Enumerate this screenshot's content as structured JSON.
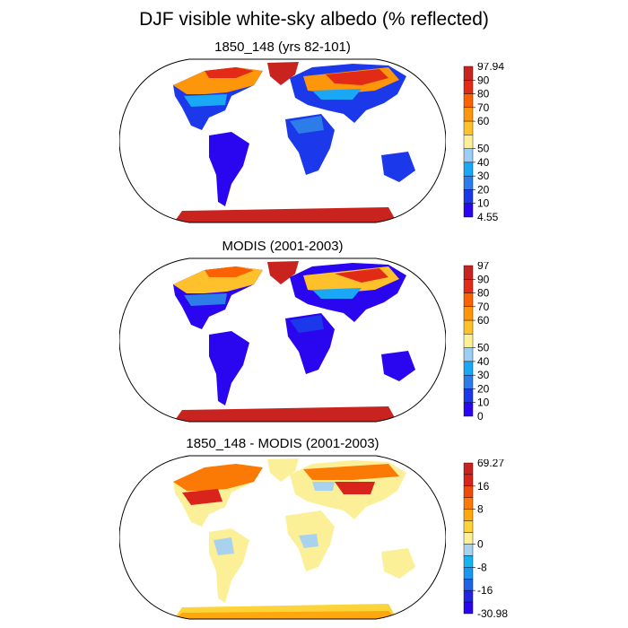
{
  "title": "DJF visible white-sky albedo (% reflected)",
  "colors": {
    "ocean": "#ffffff",
    "frame": "#000000",
    "albedo_scale": [
      "#2a06f0",
      "#1b39ea",
      "#2c7de7",
      "#1aa7f5",
      "#9ccdf2",
      "#fbf097",
      "#fec12b",
      "#fd960a",
      "#fb6202",
      "#e12b17",
      "#c9231f"
    ],
    "diff_scale": [
      "#2a06f0",
      "#2323e4",
      "#2063e5",
      "#1a97f0",
      "#19b3f2",
      "#a9d2ef",
      "#fbf097",
      "#fdd33a",
      "#fea80e",
      "#fa7a05",
      "#ef4a08",
      "#d8241a",
      "#c9231f"
    ]
  },
  "panels": [
    {
      "id": "model",
      "title": "1850_148 (yrs 82-101)",
      "colorbar": {
        "max_label": "97.94",
        "min_label": "4.55",
        "ticks": [
          "90",
          "80",
          "70",
          "60",
          "50",
          "40",
          "30",
          "20",
          "10"
        ]
      }
    },
    {
      "id": "modis",
      "title": "MODIS (2001-2003)",
      "colorbar": {
        "max_label": "97",
        "min_label": "0",
        "ticks": [
          "90",
          "80",
          "70",
          "60",
          "50",
          "40",
          "30",
          "20",
          "10"
        ]
      }
    },
    {
      "id": "diff",
      "title": "1850_148 - MODIS (2001-2003)",
      "colorbar": {
        "max_label": "69.27",
        "min_label": "-30.98",
        "ticks": [
          "16",
          "8",
          "0",
          "-8",
          "-16"
        ]
      }
    }
  ]
}
